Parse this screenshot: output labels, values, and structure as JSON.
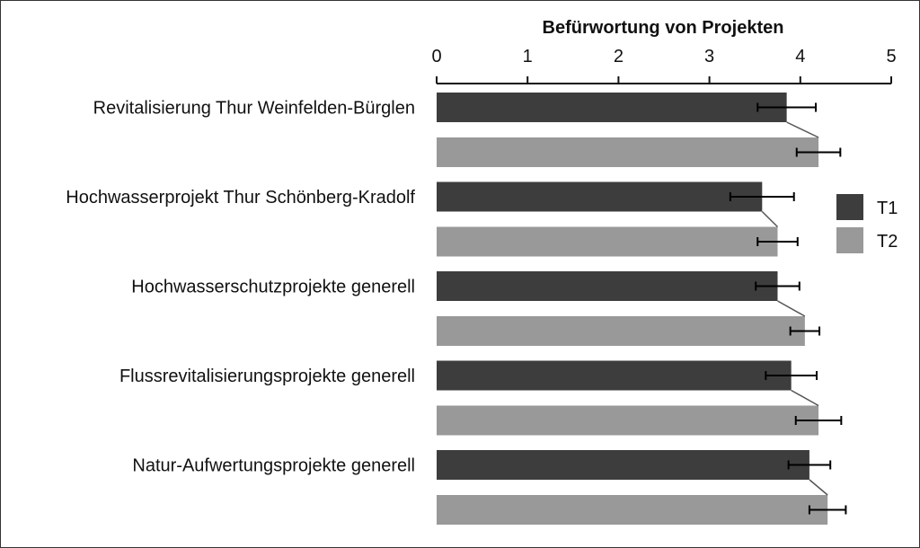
{
  "chart_data": {
    "type": "bar",
    "orientation": "horizontal",
    "title": "Befürwortung von Projekten",
    "xlabel": "",
    "ylabel": "",
    "xlim": [
      0,
      5
    ],
    "ticks": [
      "0",
      "1",
      "2",
      "3",
      "4",
      "5"
    ],
    "axis_position": "top",
    "grid": false,
    "legend": {
      "position": "right",
      "entries": [
        "T1",
        "T2"
      ]
    },
    "categories": [
      "Revitalisierung Thur Weinfelden-Bürglen",
      "Hochwasserprojekt Thur Schönberg-Kradolf",
      "Hochwasserschutzprojekte generell",
      "Flussrevitalisierungsprojekte generell",
      "Natur-Aufwertungsprojekte generell"
    ],
    "series": [
      {
        "name": "T1",
        "color": "#3d3d3d",
        "values": [
          3.85,
          3.58,
          3.75,
          3.9,
          4.1
        ],
        "error": [
          0.32,
          0.35,
          0.24,
          0.28,
          0.23
        ]
      },
      {
        "name": "T2",
        "color": "#999999",
        "values": [
          4.2,
          3.75,
          4.05,
          4.2,
          4.3
        ],
        "error": [
          0.24,
          0.22,
          0.16,
          0.25,
          0.2
        ]
      }
    ]
  }
}
